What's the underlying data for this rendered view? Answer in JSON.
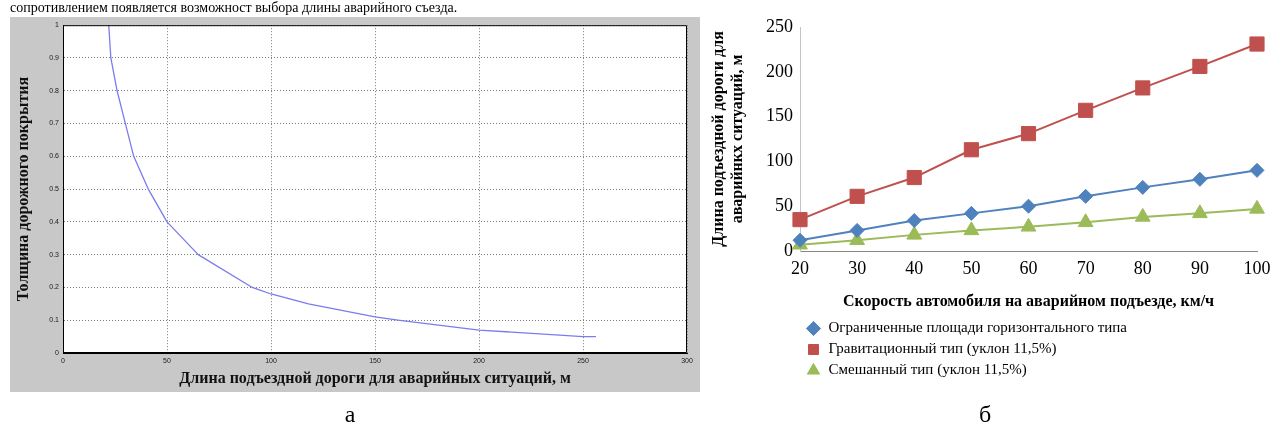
{
  "chart_data": [
    {
      "type": "line",
      "x": [
        22,
        23,
        26,
        30,
        34,
        41,
        50,
        65,
        91,
        100,
        118,
        150,
        161,
        200,
        250,
        256
      ],
      "values": [
        1,
        0.9,
        0.8,
        0.7,
        0.6,
        0.5,
        0.4,
        0.3,
        0.2,
        0.18,
        0.15,
        0.11,
        0.1,
        0.07,
        0.05,
        0.05
      ],
      "color": "#7b7bf0",
      "xlabel": "Длина подъездной дороги для аварийных ситуаций, м",
      "ylabel": "Толщина дорожного покрытия",
      "xlim": [
        0,
        300
      ],
      "xticks": [
        0,
        50,
        100,
        150,
        200,
        250,
        300
      ],
      "ylim": [
        0,
        1
      ],
      "yticks": [
        0,
        0.1,
        0.2,
        0.3,
        0.4,
        0.5,
        0.6,
        0.7,
        0.8,
        0.9,
        1
      ],
      "grid": true,
      "legend": false,
      "annotations": [
        "сопротивлением появляется возможност выбора длины аварийного съезда.",
        "а"
      ]
    },
    {
      "type": "line",
      "categories": [
        "20",
        "30",
        "40",
        "50",
        "60",
        "70",
        "80",
        "90",
        "100"
      ],
      "series": [
        {
          "name": "Ограниченные площади горизонтального типа",
          "color": "#4f81bd",
          "marker": "diamond",
          "values": [
            12,
            23,
            34,
            42,
            50,
            61,
            71,
            80,
            90
          ]
        },
        {
          "name": "Гравитационный тип (уклон 11,5%)",
          "color": "#c0504d",
          "marker": "square",
          "values": [
            35,
            61,
            82,
            113,
            131,
            157,
            182,
            206,
            231
          ]
        },
        {
          "name": "Смешанный тип (уклон 11,5%)",
          "color": "#9bbb59",
          "marker": "triangle",
          "values": [
            7,
            12,
            18,
            23,
            27,
            32,
            38,
            42,
            47
          ]
        }
      ],
      "xlabel": "Скорость автомобиля на аварийном подъезде, км/ч",
      "ylabel": "Длина подъездной дороги для аварийнкх ситуаций, м",
      "ylim": [
        0,
        250
      ],
      "yticks": [
        0,
        50,
        100,
        150,
        200,
        250
      ],
      "grid": false,
      "legend": "bottom",
      "annotations": [
        "б"
      ]
    }
  ]
}
